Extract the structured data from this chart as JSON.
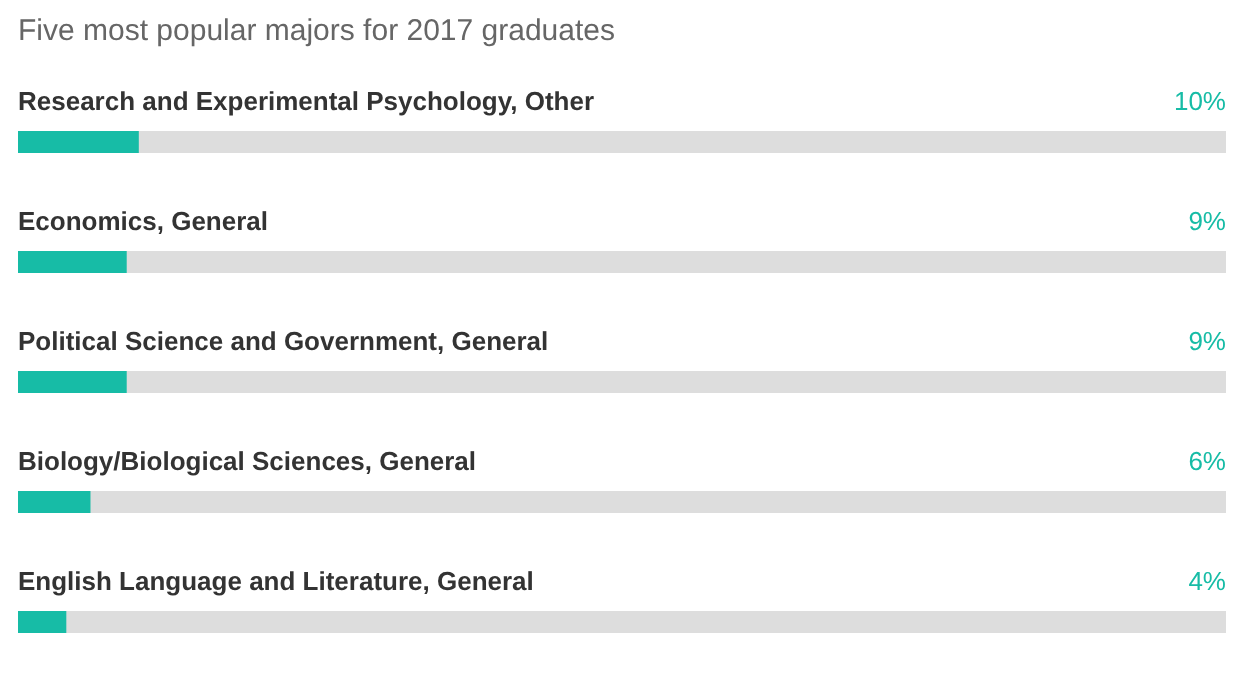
{
  "chart_data": {
    "type": "bar",
    "orientation": "horizontal",
    "title": "Five most popular majors for 2017 graduates",
    "categories": [
      "Research and Experimental Psychology, Other",
      "Economics, General",
      "Political Science and Government, General",
      "Biology/Biological Sciences, General",
      "English Language and Literature, General"
    ],
    "values": [
      10,
      9,
      9,
      6,
      4
    ],
    "value_labels": [
      "10%",
      "9%",
      "9%",
      "6%",
      "4%"
    ],
    "color": "#17bca6",
    "xlim": [
      0,
      100
    ],
    "tick_labels": false,
    "grid": false
  }
}
